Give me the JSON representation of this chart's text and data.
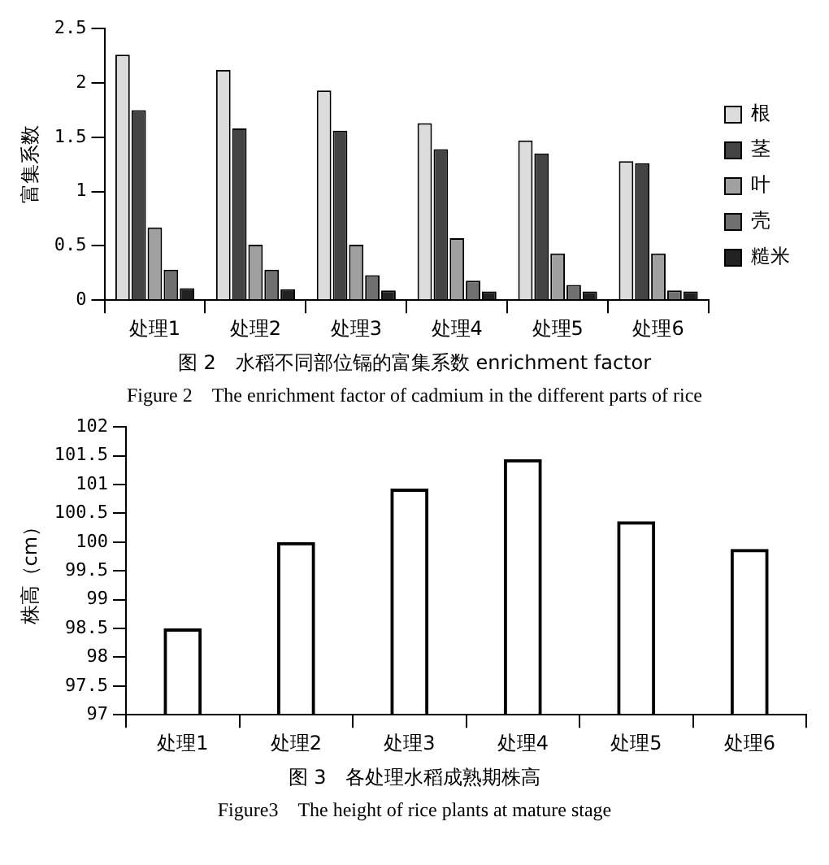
{
  "chart_data": [
    {
      "type": "bar",
      "ylabel": "富集系数",
      "categories": [
        "处理1",
        "处理2",
        "处理3",
        "处理4",
        "处理5",
        "处理6"
      ],
      "ylim": [
        0,
        2.5
      ],
      "yticks": [
        0,
        0.5,
        1,
        1.5,
        2,
        2.5
      ],
      "grid": false,
      "legend": "right",
      "annotations": [
        "图 2　水稻不同部位镉的富集系数 enrichment factor",
        "Figure 2　The enrichment factor of cadmium in the different parts of rice"
      ],
      "series": [
        {
          "name": "根",
          "color": "#dcdcdc",
          "values": [
            2.26,
            2.12,
            1.93,
            1.63,
            1.47,
            1.28
          ]
        },
        {
          "name": "茎",
          "color": "#444444",
          "values": [
            1.75,
            1.58,
            1.56,
            1.39,
            1.35,
            1.26
          ]
        },
        {
          "name": "叶",
          "color": "#a0a0a0",
          "values": [
            0.67,
            0.51,
            0.51,
            0.57,
            0.43,
            0.43
          ]
        },
        {
          "name": "壳",
          "color": "#707070",
          "values": [
            0.28,
            0.28,
            0.23,
            0.18,
            0.14,
            0.09
          ]
        },
        {
          "name": "糙米",
          "color": "#222222",
          "values": [
            0.11,
            0.1,
            0.09,
            0.08,
            0.08,
            0.08
          ]
        }
      ]
    },
    {
      "type": "bar",
      "ylabel": "株高（cm）",
      "categories": [
        "处理1",
        "处理2",
        "处理3",
        "处理4",
        "处理5",
        "处理6"
      ],
      "ylim": [
        97,
        102
      ],
      "yticks": [
        97,
        97.5,
        98,
        98.5,
        99,
        99.5,
        100,
        100.5,
        101,
        101.5,
        102
      ],
      "grid": false,
      "legend": false,
      "annotations": [
        "图 3　各处理水稻成熟期株高",
        "Figure3　The height of rice plants at mature stage"
      ],
      "series": [
        {
          "color": "#000000",
          "values": [
            98.5,
            100,
            100.93,
            101.44,
            100.36,
            99.88
          ]
        }
      ]
    }
  ]
}
